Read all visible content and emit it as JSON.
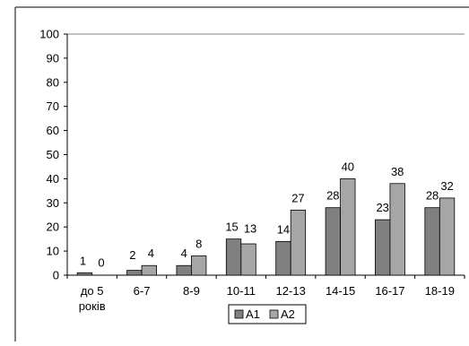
{
  "chart_data": {
    "type": "bar",
    "categories": [
      "до 5\nроків",
      "6-7",
      "8-9",
      "10-11",
      "12-13",
      "14-15",
      "16-17",
      "18-19"
    ],
    "series": [
      {
        "name": "A1",
        "values": [
          1,
          2,
          4,
          15,
          14,
          28,
          23,
          28
        ],
        "color": "#808080"
      },
      {
        "name": "A2",
        "values": [
          0,
          4,
          8,
          13,
          27,
          40,
          38,
          32
        ],
        "color": "#A6A6A6"
      }
    ],
    "ylim": [
      0,
      100
    ],
    "yticks": [
      0,
      10,
      20,
      30,
      40,
      50,
      60,
      70,
      80,
      90,
      100
    ],
    "grid": "y-top-only",
    "legend": "bottom-center",
    "data_labels": true
  }
}
